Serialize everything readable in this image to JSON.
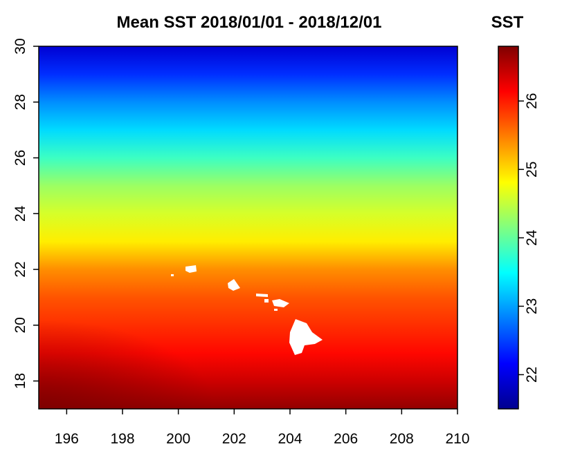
{
  "chart_data": {
    "type": "heatmap",
    "title": "Mean SST 2018/01/01  -  2018/12/01",
    "colorbar_title": "SST",
    "xlim": [
      195,
      210
    ],
    "ylim": [
      17,
      30
    ],
    "x_ticks": [
      196,
      198,
      200,
      202,
      204,
      206,
      208,
      210
    ],
    "y_ticks": [
      18,
      20,
      22,
      24,
      26,
      28,
      30
    ],
    "colorbar_range": [
      21.5,
      26.8
    ],
    "colorbar_ticks": [
      22,
      23,
      24,
      25,
      26
    ],
    "colormap": "jet",
    "colormap_stops": [
      "#00008F",
      "#0000FF",
      "#00FFFF",
      "#FFFF00",
      "#FF0000",
      "#800000"
    ],
    "grid": false,
    "legend_position": "right",
    "sst_profile": {
      "latitude": [
        17,
        18,
        19,
        20,
        21,
        22,
        23,
        24,
        25,
        26,
        27,
        28,
        29,
        30
      ],
      "value": [
        26.7,
        26.4,
        26.1,
        25.9,
        25.7,
        25.4,
        24.9,
        24.6,
        24.3,
        23.8,
        23.3,
        22.9,
        22.4,
        21.9
      ]
    },
    "land_color": "#ffffff"
  }
}
